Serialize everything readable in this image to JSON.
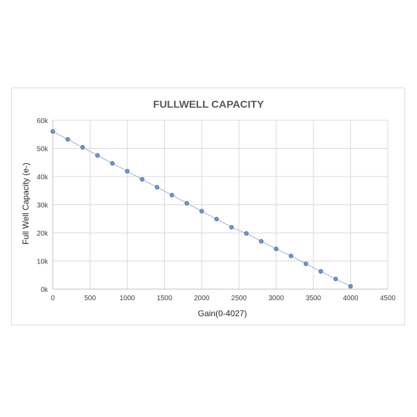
{
  "chart_data": {
    "type": "scatter",
    "title": "FULLWELL CAPACITY",
    "xlabel": "Gain(0-4027)",
    "ylabel": "Full Well Capacity (e-)",
    "xlim": [
      0,
      4500
    ],
    "ylim": [
      0,
      60000
    ],
    "x_ticks": [
      0,
      500,
      1000,
      1500,
      2000,
      2500,
      3000,
      3500,
      4000,
      4500
    ],
    "x_tick_labels": [
      "0",
      "500",
      "1000",
      "1500",
      "2000",
      "2500",
      "3000",
      "3500",
      "4000",
      "4500"
    ],
    "y_ticks": [
      0,
      10000,
      20000,
      30000,
      40000,
      50000,
      60000
    ],
    "y_tick_labels": [
      "0k",
      "10k",
      "20k",
      "30k",
      "40k",
      "50k",
      "60k"
    ],
    "grid": true,
    "legend": "none",
    "series": [
      {
        "x": [
          0,
          200,
          400,
          600,
          800,
          1000,
          1200,
          1400,
          1600,
          1800,
          2000,
          2200,
          2400,
          2600,
          2800,
          3000,
          3200,
          3400,
          3600,
          3800,
          4000
        ],
        "y": [
          56000,
          53200,
          50400,
          47500,
          44700,
          41900,
          39000,
          36200,
          33400,
          30500,
          27700,
          24900,
          22000,
          19800,
          17000,
          14300,
          11800,
          9000,
          6300,
          3600,
          1000
        ],
        "color": "#6f97d0"
      }
    ],
    "colors": {
      "marker_fill": "#6f97d0",
      "marker_stroke": "#3f6aa8",
      "line": "#8fb0dc",
      "grid": "#d9d9d9",
      "axis": "#bfbfbf"
    }
  }
}
